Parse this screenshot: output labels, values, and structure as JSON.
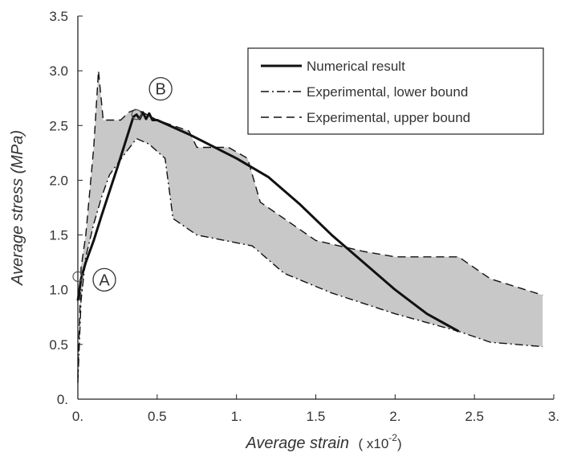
{
  "chart_data": {
    "type": "line",
    "xlabel": "Average strain",
    "xlabel_unit": "( x10",
    "xlabel_exp": "-2",
    "xlabel_close": ")",
    "ylabel": "Average stress (MPa)",
    "xlim": [
      0,
      3
    ],
    "ylim": [
      0,
      3.5
    ],
    "x_ticks": [
      {
        "value": 0,
        "label": "0."
      },
      {
        "value": 0.5,
        "label": "0.5"
      },
      {
        "value": 1,
        "label": "1."
      },
      {
        "value": 1.5,
        "label": "1.5"
      },
      {
        "value": 2,
        "label": "2."
      },
      {
        "value": 2.5,
        "label": "2.5"
      },
      {
        "value": 3,
        "label": "3."
      }
    ],
    "y_ticks": [
      {
        "value": 0,
        "label": "0."
      },
      {
        "value": 0.5,
        "label": "0.5"
      },
      {
        "value": 1,
        "label": "1.0"
      },
      {
        "value": 1.5,
        "label": "1.5"
      },
      {
        "value": 2,
        "label": "2.0"
      },
      {
        "value": 2.5,
        "label": "2.5"
      },
      {
        "value": 3,
        "label": "3.0"
      },
      {
        "value": 3.5,
        "label": "3.5"
      }
    ],
    "grid": false,
    "legend_position": "top-right",
    "fill_color": "#c8c8c8",
    "line_color": "#111111",
    "series": [
      {
        "name": "Numerical result",
        "style": "solid",
        "points": [
          [
            0,
            0.9
          ],
          [
            0.02,
            1.1
          ],
          [
            0.05,
            1.25
          ],
          [
            0.1,
            1.45
          ],
          [
            0.15,
            1.68
          ],
          [
            0.2,
            1.9
          ],
          [
            0.25,
            2.12
          ],
          [
            0.3,
            2.35
          ],
          [
            0.35,
            2.58
          ],
          [
            0.37,
            2.6
          ],
          [
            0.39,
            2.56
          ],
          [
            0.41,
            2.62
          ],
          [
            0.43,
            2.56
          ],
          [
            0.45,
            2.61
          ],
          [
            0.47,
            2.55
          ],
          [
            0.5,
            2.55
          ],
          [
            0.7,
            2.42
          ],
          [
            1.0,
            2.2
          ],
          [
            1.2,
            2.03
          ],
          [
            1.4,
            1.78
          ],
          [
            1.6,
            1.5
          ],
          [
            1.8,
            1.25
          ],
          [
            2.0,
            1.0
          ],
          [
            2.2,
            0.78
          ],
          [
            2.4,
            0.62
          ]
        ]
      },
      {
        "name": "Experimental, lower bound",
        "style": "dashdot",
        "points": [
          [
            0,
            0.15
          ],
          [
            0.02,
            0.9
          ],
          [
            0.05,
            1.3
          ],
          [
            0.1,
            1.6
          ],
          [
            0.15,
            1.85
          ],
          [
            0.2,
            2.05
          ],
          [
            0.25,
            2.15
          ],
          [
            0.3,
            2.25
          ],
          [
            0.37,
            2.38
          ],
          [
            0.45,
            2.33
          ],
          [
            0.55,
            2.2
          ],
          [
            0.6,
            1.65
          ],
          [
            0.75,
            1.5
          ],
          [
            1.1,
            1.4
          ],
          [
            1.3,
            1.15
          ],
          [
            1.6,
            0.97
          ],
          [
            2.0,
            0.78
          ],
          [
            2.4,
            0.62
          ],
          [
            2.6,
            0.52
          ],
          [
            2.93,
            0.48
          ]
        ]
      },
      {
        "name": "Experimental, upper bound",
        "style": "dashed",
        "points": [
          [
            0,
            0.2
          ],
          [
            0.02,
            1.2
          ],
          [
            0.05,
            1.5
          ],
          [
            0.1,
            2.3
          ],
          [
            0.13,
            3.0
          ],
          [
            0.16,
            2.55
          ],
          [
            0.27,
            2.55
          ],
          [
            0.32,
            2.62
          ],
          [
            0.37,
            2.65
          ],
          [
            0.5,
            2.55
          ],
          [
            0.7,
            2.45
          ],
          [
            0.75,
            2.3
          ],
          [
            0.95,
            2.3
          ],
          [
            1.07,
            2.2
          ],
          [
            1.15,
            1.8
          ],
          [
            1.5,
            1.45
          ],
          [
            1.8,
            1.35
          ],
          [
            2.0,
            1.3
          ],
          [
            2.4,
            1.3
          ],
          [
            2.6,
            1.1
          ],
          [
            2.93,
            0.95
          ]
        ]
      }
    ],
    "annotations": [
      {
        "label": "A",
        "marker": [
          0,
          1.12
        ]
      },
      {
        "label": "B",
        "marker": [
          0.37,
          2.6
        ]
      }
    ]
  }
}
